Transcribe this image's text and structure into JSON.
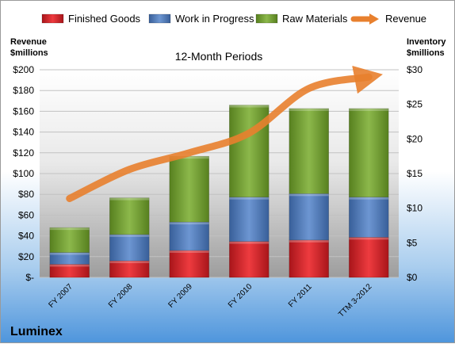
{
  "company": "Luminex",
  "chart_data": {
    "type": "bar",
    "stacked": true,
    "title": "12-Month Periods",
    "categories": [
      "FY 2007",
      "FY 2008",
      "FY 2009",
      "FY 2010",
      "FY 2011",
      "TTM 3-2012"
    ],
    "left_axis": {
      "label_line1": "Revenue",
      "label_line2": "$millions",
      "ylim": [
        0,
        200
      ],
      "ticks": [
        0,
        20,
        40,
        60,
        80,
        100,
        120,
        140,
        160,
        180,
        200
      ],
      "tick_labels": [
        "$-",
        "$20",
        "$40",
        "$60",
        "$80",
        "$100",
        "$120",
        "$140",
        "$160",
        "$180",
        "$200"
      ]
    },
    "right_axis": {
      "label_line1": "Inventory",
      "label_line2": "$millions",
      "ylim": [
        0,
        30
      ],
      "ticks": [
        0,
        5,
        10,
        15,
        20,
        25,
        30
      ],
      "tick_labels": [
        "$0",
        "$5",
        "$10",
        "$15",
        "$20",
        "$25",
        "$30"
      ]
    },
    "series": [
      {
        "name": "Finished Goods",
        "type": "bar",
        "axis": "right",
        "color": "#d9262b",
        "values": [
          1.9,
          2.4,
          3.9,
          5.2,
          5.4,
          5.8
        ]
      },
      {
        "name": "Work in Progress",
        "type": "bar",
        "axis": "right",
        "color": "#4f7ab8",
        "values": [
          1.7,
          3.8,
          4.1,
          6.4,
          6.7,
          5.8
        ]
      },
      {
        "name": "Raw Materials",
        "type": "bar",
        "axis": "right",
        "color": "#6f9a2e",
        "values": [
          3.6,
          5.3,
          9.5,
          13.3,
          12.3,
          12.8
        ]
      },
      {
        "name": "Revenue",
        "type": "line",
        "axis": "left",
        "color": "#e8802e",
        "values": [
          76,
          104,
          120,
          139,
          182,
          193
        ]
      }
    ],
    "grid": true,
    "legend_position": "top"
  }
}
